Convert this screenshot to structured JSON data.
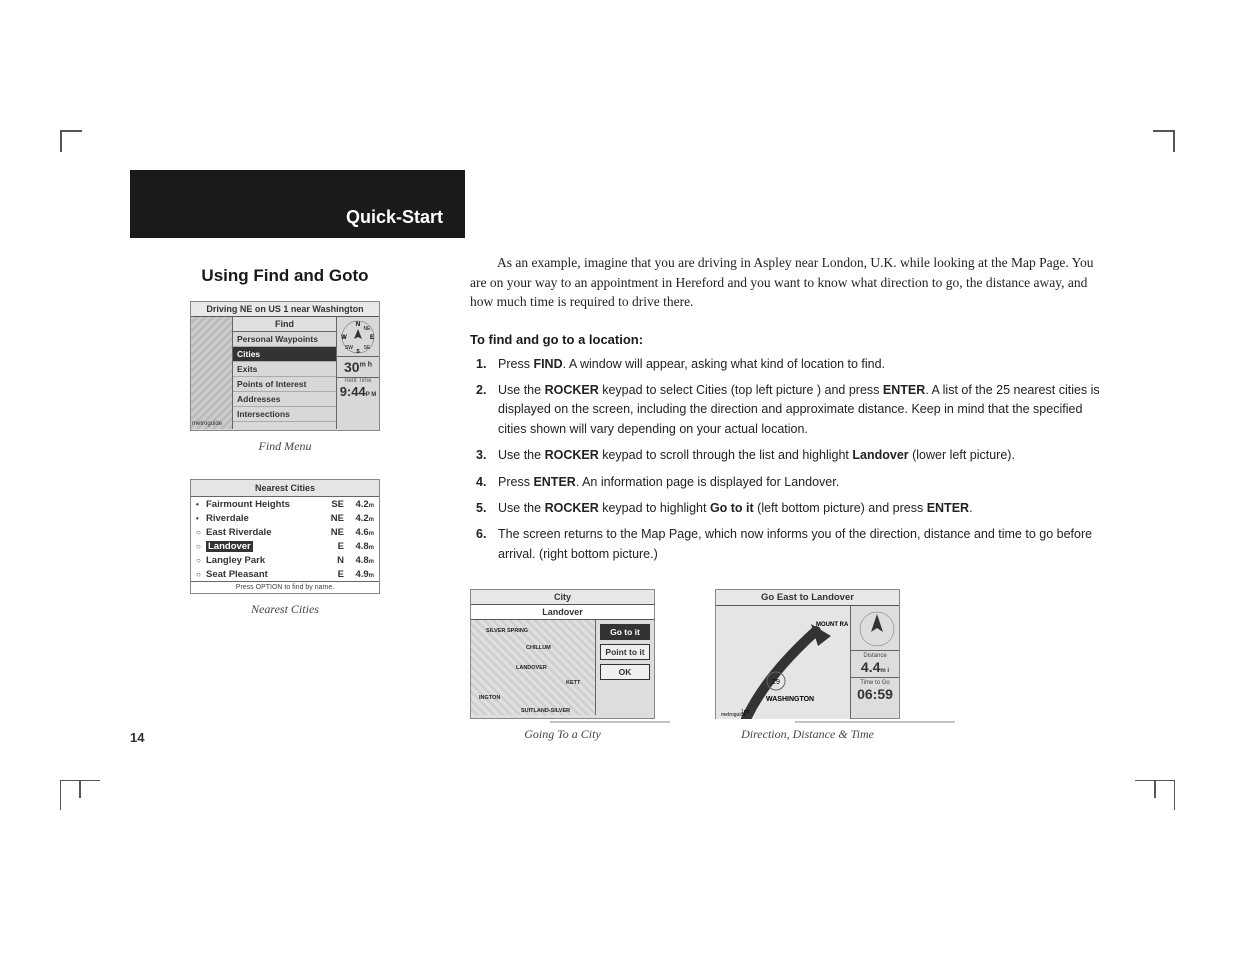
{
  "header": "Quick-Start",
  "section_title": "Using Find and Goto",
  "page_number": "14",
  "intro": "As an example, imagine that you are driving in Aspley near London, U.K. while looking at the Map Page. You are on your way to an appointment in Hereford and you want to know what direction to go, the distance away, and how much time is required to drive there.",
  "steps_heading": "To find and go to a location:",
  "steps": [
    {
      "pre": "Press ",
      "b1": "FIND",
      "post": ". A window will appear, asking what kind of location to find."
    },
    {
      "pre": "Use the ",
      "b1": "ROCKER",
      "mid": " keypad to select Cities (top left picture ) and press ",
      "b2": "ENTER",
      "post": ". A list of the 25 nearest cities is displayed on the screen, including the direction and approximate distance. Keep in mind that the specified cities shown will vary depending on your actual location."
    },
    {
      "pre": "Use the ",
      "b1": "ROCKER",
      "mid": " keypad to scroll through the list and highlight ",
      "b2": "Landover",
      "post": " (lower left picture)."
    },
    {
      "pre": "Press ",
      "b1": "ENTER",
      "post": ". An information page is displayed for Landover."
    },
    {
      "pre": "Use the ",
      "b1": "ROCKER",
      "mid": " keypad to highlight ",
      "b2": "Go to it",
      "mid2": " (left bottom picture) and press ",
      "b3": "ENTER",
      "post": "."
    },
    {
      "pre": "The screen returns to the Map Page, which now informs you of the direction, distance and time to go before arrival. (right bottom picture.)"
    }
  ],
  "captions": {
    "find_menu": "Find Menu",
    "nearest": "Nearest  Cities",
    "city": "Going To a City",
    "dir": "Direction, Distance & Time"
  },
  "find_menu": {
    "driving": "Driving NE on US 1 near Washington",
    "title": "Find",
    "items": [
      "Personal Waypoints",
      "Cities",
      "Exits",
      "Points of Interest",
      "Addresses",
      "Intersections"
    ],
    "highlighted": 1,
    "speed": "30",
    "speed_unit": "m h",
    "time_label": "rrent Time",
    "time": "9:44",
    "time_suffix": "P M"
  },
  "nearest": {
    "title": "Nearest Cities",
    "rows": [
      {
        "bullet": "•",
        "name": "Fairmount Heights",
        "dir": "SE",
        "dist": "4.2",
        "unit": "m"
      },
      {
        "bullet": "•",
        "name": "Riverdale",
        "dir": "NE",
        "dist": "4.2",
        "unit": "m"
      },
      {
        "bullet": "○",
        "name": "East Riverdale",
        "dir": "NE",
        "dist": "4.6",
        "unit": "m"
      },
      {
        "bullet": "○",
        "name": "Landover",
        "dir": "E",
        "dist": "4.8",
        "unit": "m",
        "hl": true
      },
      {
        "bullet": "○",
        "name": "Langley Park",
        "dir": "N",
        "dist": "4.8",
        "unit": "m"
      },
      {
        "bullet": "○",
        "name": "Seat Pleasant",
        "dir": "E",
        "dist": "4.9",
        "unit": "m"
      }
    ],
    "footer": "Press OPTION to find by name."
  },
  "city": {
    "title": "City",
    "subtitle": "Landover",
    "buttons": [
      "Go to it",
      "Point to it",
      "OK"
    ],
    "highlighted": 0,
    "map_labels": [
      "SILVER SPRING",
      "CHILLUM",
      "LANDOVER",
      "KETT",
      "INGTON",
      "SUITLAND-SILVER"
    ]
  },
  "dir": {
    "title": "Go East to Landover",
    "dist_label": "Distance",
    "dist": "4.4",
    "dist_unit": "m i",
    "time_label": "Time to Go",
    "time": "06:59",
    "map_labels": [
      "MOUNT RA",
      "WASHINGTON",
      "metroguide"
    ],
    "route_num": "29"
  }
}
